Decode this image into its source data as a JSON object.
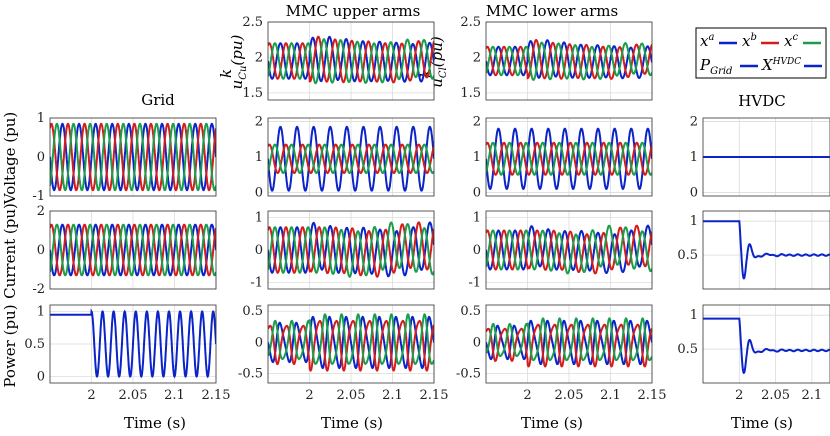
{
  "figure": {
    "titles": {
      "grid": "Grid",
      "upper": "MMC upper arms",
      "lower": "MMC lower arms",
      "hvdc": "HVDC"
    },
    "ylabels": {
      "voltage": "Voltage (pu)",
      "current": "Current (pu)",
      "power": "Power (pu)",
      "ucu": "u",
      "ucl": "u"
    },
    "xlabel": "Time (s)",
    "legend": [
      {
        "label": "x",
        "sup": "a",
        "color": "#0b24c9"
      },
      {
        "label": "x",
        "sup": "b",
        "color": "#d41c1c"
      },
      {
        "label": "x",
        "sup": "c",
        "color": "#1a9e4c"
      },
      {
        "label": "P",
        "sub": "Grid",
        "color": "#0b24c9"
      },
      {
        "label": "X",
        "sup": "HVDC",
        "color": "#0b24c9"
      }
    ]
  },
  "chart_data": [
    {
      "type": "line",
      "id": "grid-voltage",
      "ylabel": "Voltage (pu)",
      "xlim": [
        1.95,
        2.15
      ],
      "ylim": [
        -1,
        1
      ],
      "xticks": [
        2,
        2.05,
        2.1,
        2.15
      ],
      "yticks": [
        -1,
        0,
        1
      ],
      "series": [
        {
          "name": "x^a",
          "color": "#0b24c9",
          "amplitude": 0.85,
          "frequency_hz": 50,
          "phase_deg": 0
        },
        {
          "name": "x^b",
          "color": "#d41c1c",
          "amplitude": 0.85,
          "frequency_hz": 50,
          "phase_deg": -120
        },
        {
          "name": "x^c",
          "color": "#1a9e4c",
          "amplitude": 0.85,
          "frequency_hz": 50,
          "phase_deg": 120
        }
      ]
    },
    {
      "type": "line",
      "id": "grid-current",
      "ylabel": "Current (pu)",
      "xlim": [
        1.95,
        2.15
      ],
      "ylim": [
        -2,
        2
      ],
      "xticks": [
        2,
        2.05,
        2.1,
        2.15
      ],
      "yticks": [
        -2,
        0,
        2
      ],
      "series": [
        {
          "name": "x^a",
          "amplitude": 1.3,
          "frequency_hz": 50,
          "phase_deg": 0
        },
        {
          "name": "x^b",
          "amplitude": 1.3,
          "frequency_hz": 50,
          "phase_deg": -120
        },
        {
          "name": "x^c",
          "amplitude": 1.3,
          "frequency_hz": 50,
          "phase_deg": 120
        }
      ]
    },
    {
      "type": "line",
      "id": "grid-power",
      "ylabel": "Power (pu)",
      "xlim": [
        1.95,
        2.15
      ],
      "ylim": [
        -0.1,
        1.1
      ],
      "xticks": [
        2,
        2.05,
        2.1,
        2.15
      ],
      "yticks": [
        0,
        0.5,
        1
      ],
      "series": [
        {
          "name": "P_Grid",
          "before": 0.95,
          "switch_time": 2.0,
          "after_min": 0,
          "after_max": 1.0,
          "frequency_hz": 75
        }
      ]
    },
    {
      "type": "line",
      "id": "upper-ucu",
      "title": "MMC upper arms",
      "xlim": [
        1.95,
        2.15
      ],
      "ylim": [
        1.4,
        2.5
      ],
      "yticks": [
        1.5,
        2,
        2.5
      ],
      "series": [
        {
          "name": "x^a",
          "offset": 1.95,
          "amplitude": 0.25,
          "frequency_hz": 50
        },
        {
          "name": "x^b",
          "offset": 1.95,
          "amplitude": 0.25,
          "frequency_hz": 50
        },
        {
          "name": "x^c",
          "offset": 1.95,
          "amplitude": 0.25,
          "frequency_hz": 50
        }
      ]
    },
    {
      "type": "line",
      "id": "upper-voltage",
      "xlim": [
        1.95,
        2.15
      ],
      "ylim": [
        -0.1,
        2.1
      ],
      "yticks": [
        0,
        1,
        2
      ],
      "series": [
        {
          "name": "x^a",
          "offset": 0.95,
          "amplitude": 0.9
        },
        {
          "name": "x^b",
          "offset": 0.95,
          "amplitude": 0.4
        },
        {
          "name": "x^c",
          "offset": 0.95,
          "amplitude": 0.4
        }
      ]
    },
    {
      "type": "line",
      "id": "upper-current",
      "xlim": [
        1.95,
        2.15
      ],
      "ylim": [
        -1.2,
        1.2
      ],
      "yticks": [
        -1,
        0,
        1
      ],
      "series": [
        {
          "name": "x^a",
          "amplitude": 0.7
        },
        {
          "name": "x^b",
          "amplitude": 0.7
        },
        {
          "name": "x^c",
          "amplitude": 0.7
        }
      ]
    },
    {
      "type": "line",
      "id": "upper-power",
      "xlim": [
        1.95,
        2.15
      ],
      "ylim": [
        -0.65,
        0.6
      ],
      "yticks": [
        -0.5,
        0,
        0.5
      ],
      "series": [
        {
          "name": "x^a",
          "amplitude": 0.3
        },
        {
          "name": "x^b",
          "amplitude": 0.3
        },
        {
          "name": "x^c",
          "amplitude": 0.3
        }
      ]
    },
    {
      "type": "line",
      "id": "lower-ucl",
      "title": "MMC lower arms",
      "xlim": [
        1.95,
        2.15
      ],
      "ylim": [
        1.4,
        2.5
      ],
      "yticks": [
        1.5,
        2,
        2.5
      ],
      "series": [
        {
          "name": "x^a",
          "offset": 1.95,
          "amplitude": 0.2
        },
        {
          "name": "x^b",
          "offset": 1.95,
          "amplitude": 0.2
        },
        {
          "name": "x^c",
          "offset": 1.95,
          "amplitude": 0.2
        }
      ]
    },
    {
      "type": "line",
      "id": "lower-voltage",
      "xlim": [
        1.95,
        2.15
      ],
      "ylim": [
        -0.1,
        2.1
      ],
      "yticks": [
        0,
        1,
        2
      ],
      "series": [
        {
          "name": "x^a",
          "offset": 0.95,
          "amplitude": 0.85
        },
        {
          "name": "x^b",
          "offset": 0.95,
          "amplitude": 0.45
        },
        {
          "name": "x^c",
          "offset": 0.95,
          "amplitude": 0.45
        }
      ]
    },
    {
      "type": "line",
      "id": "lower-current",
      "xlim": [
        1.95,
        2.15
      ],
      "ylim": [
        -1.2,
        1.2
      ],
      "yticks": [
        -1,
        0,
        1
      ],
      "series": [
        {
          "name": "x^a",
          "amplitude": 0.6
        },
        {
          "name": "x^b",
          "amplitude": 0.6
        },
        {
          "name": "x^c",
          "amplitude": 0.6
        }
      ]
    },
    {
      "type": "line",
      "id": "lower-power",
      "xlim": [
        1.95,
        2.15
      ],
      "ylim": [
        -0.65,
        0.6
      ],
      "yticks": [
        -0.5,
        0,
        0.5
      ],
      "series": [
        {
          "name": "x^a",
          "amplitude": 0.25
        },
        {
          "name": "x^b",
          "amplitude": 0.25
        },
        {
          "name": "x^c",
          "amplitude": 0.25
        }
      ]
    },
    {
      "type": "line",
      "id": "hvdc-voltage",
      "title": "HVDC",
      "xlim": [
        1.95,
        2.15
      ],
      "ylim": [
        -0.1,
        2.1
      ],
      "yticks": [
        0,
        1,
        2
      ],
      "series": [
        {
          "name": "X^HVDC",
          "constant": 1.0
        }
      ]
    },
    {
      "type": "line",
      "id": "hvdc-current",
      "xlim": [
        1.95,
        2.15
      ],
      "ylim": [
        0,
        1.15
      ],
      "yticks": [
        0.5,
        1
      ],
      "series": [
        {
          "name": "X^HVDC",
          "before": 1.0,
          "switch_time": 2.0,
          "settle": 0.5
        }
      ]
    },
    {
      "type": "line",
      "id": "hvdc-power",
      "xlim": [
        1.95,
        2.15
      ],
      "ylim": [
        0,
        1.15
      ],
      "yticks": [
        0.5,
        1
      ],
      "series": [
        {
          "name": "X^HVDC",
          "before": 0.95,
          "switch_time": 2.0,
          "settle": 0.48
        }
      ]
    }
  ]
}
